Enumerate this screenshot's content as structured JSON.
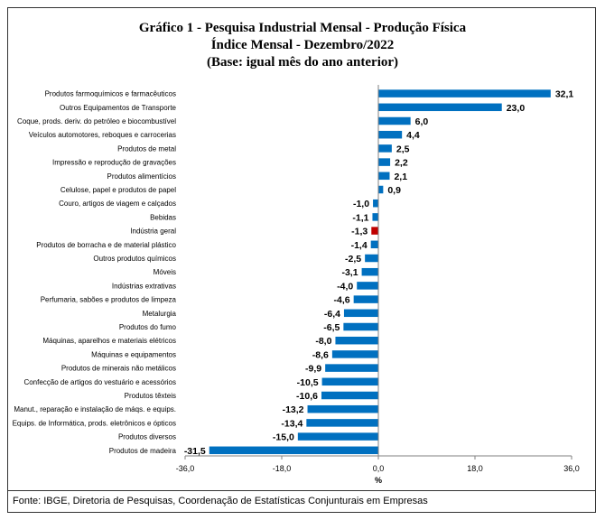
{
  "chart_data": {
    "type": "bar",
    "orientation": "horizontal",
    "title": "Gráfico 1 - Pesquisa Industrial Mensal - Produção Física",
    "subtitle": "Índice Mensal - Dezembro/2022",
    "subtitle2": "(Base: igual mês do ano anterior)",
    "xlabel": "%",
    "xlim": [
      -36,
      36
    ],
    "xticks": [
      -36,
      -18,
      0,
      18,
      36
    ],
    "xtick_labels": [
      "-36,0",
      "-18,0",
      "0,0",
      "18,0",
      "36,0"
    ],
    "categories": [
      "Produtos farmoquímicos e farmacêuticos",
      "Outros Equipamentos de Transporte",
      "Coque, prods. deriv. do petróleo e biocombustível",
      "Veículos automotores, reboques e carrocerias",
      "Produtos de metal",
      "Impressão e reprodução de gravações",
      "Produtos alimentícios",
      "Celulose, papel e produtos de papel",
      "Couro, artigos de viagem e calçados",
      "Bebidas",
      "Indústria geral",
      "Produtos de borracha e de material plástico",
      "Outros produtos químicos",
      "Móveis",
      "Indústrias extrativas",
      "Perfumaria, sabões e produtos de limpeza",
      "Metalurgia",
      "Produtos do fumo",
      "Máquinas, aparelhos e materiais elétricos",
      "Máquinas e equipamentos",
      "Produtos de minerais não metálicos",
      "Confecção de artigos do vestuário e acessórios",
      "Produtos têxteis",
      "Manut., reparação e instalação de máqs. e equips.",
      "Equips. de Informática, prods. eletrônicos e ópticos",
      "Produtos diversos",
      "Produtos de madeira"
    ],
    "values": [
      32.1,
      23.0,
      6.0,
      4.4,
      2.5,
      2.2,
      2.1,
      0.9,
      -1.0,
      -1.1,
      -1.3,
      -1.4,
      -2.5,
      -3.1,
      -4.0,
      -4.6,
      -6.4,
      -6.5,
      -8.0,
      -8.6,
      -9.9,
      -10.5,
      -10.6,
      -13.2,
      -13.4,
      -15.0,
      -31.5
    ],
    "value_labels": [
      "32,1",
      "23,0",
      "6,0",
      "4,4",
      "2,5",
      "2,2",
      "2,1",
      "0,9",
      "-1,0",
      "-1,1",
      "-1,3",
      "-1,4",
      "-2,5",
      "-3,1",
      "-4,0",
      "-4,6",
      "-6,4",
      "-6,5",
      "-8,0",
      "-8,6",
      "-9,9",
      "-10,5",
      "-10,6",
      "-13,2",
      "-13,4",
      "-15,0",
      "-31,5"
    ],
    "highlight_category": "Indústria geral",
    "colors": {
      "bar": "#0070C0",
      "highlight": "#C00000",
      "axis": "#808080"
    }
  },
  "source": "Fonte: IBGE, Diretoria de Pesquisas, Coordenação de Estatísticas Conjunturais em Empresas"
}
